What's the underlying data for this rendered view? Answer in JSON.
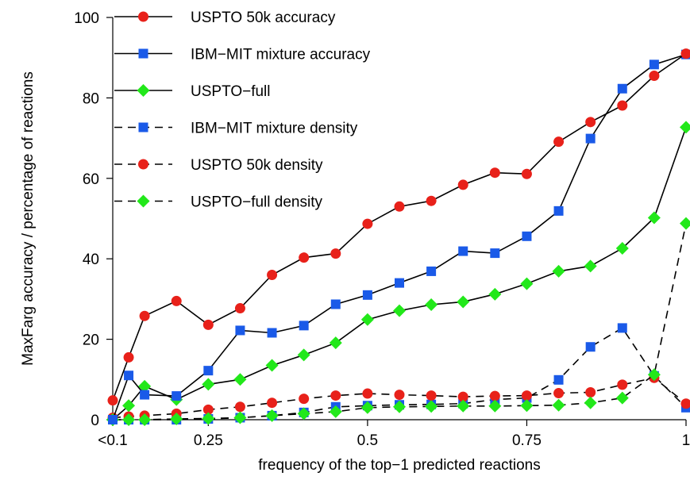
{
  "chart_data": {
    "type": "line",
    "xlabel": "frequency of the top−1 predicted reactions",
    "ylabel": "MaxFarg accuracy / percentage of reactions",
    "xlim": [
      0.1,
      1.0
    ],
    "ylim": [
      0,
      100
    ],
    "x_ticks": [
      {
        "value": 0.1,
        "label": "<0.1"
      },
      {
        "value": 0.25,
        "label": "0.25"
      },
      {
        "value": 0.5,
        "label": "0.5"
      },
      {
        "value": 0.75,
        "label": "0.75"
      },
      {
        "value": 1.0,
        "label": "1"
      }
    ],
    "y_ticks": [
      {
        "value": 0,
        "label": "0"
      },
      {
        "value": 20,
        "label": "20"
      },
      {
        "value": 40,
        "label": "40"
      },
      {
        "value": 60,
        "label": "60"
      },
      {
        "value": 80,
        "label": "80"
      },
      {
        "value": 100,
        "label": "100"
      }
    ],
    "grid": false,
    "legend_position": "top-left",
    "x": [
      0.1,
      0.125,
      0.15,
      0.175,
      0.2,
      0.225,
      0.25,
      0.275,
      0.3,
      0.325,
      0.35,
      0.375,
      0.4,
      0.425,
      0.45,
      0.475,
      0.5,
      0.525,
      0.55,
      0.575,
      0.6,
      0.625,
      0.65,
      0.675,
      0.7,
      0.725,
      0.75,
      0.775,
      0.8,
      0.825,
      0.85,
      0.875,
      0.9,
      0.925,
      0.95,
      0.975,
      1.0
    ],
    "series": [
      {
        "name": " USPTO 50k accuracy",
        "style": "solid",
        "marker": "circle",
        "color": "#e8211a",
        "x": [
          0.1,
          0.125,
          0.15,
          0.2,
          0.25,
          0.3,
          0.35,
          0.4,
          0.45,
          0.5,
          0.55,
          0.6,
          0.65,
          0.7,
          0.75,
          0.8,
          0.85,
          0.9,
          0.95,
          1.0
        ],
        "values": [
          4.8,
          15.5,
          25.8,
          29.5,
          23.6,
          27.7,
          36.0,
          40.3,
          41.3,
          48.7,
          53.0,
          54.4,
          58.4,
          61.4,
          61.1,
          69.1,
          74.0,
          78.1,
          85.5,
          91.0
        ]
      },
      {
        "name": "IBM−MIT mixture accuracy",
        "style": "solid",
        "marker": "square",
        "color": "#1a5ae8",
        "x": [
          0.1,
          0.125,
          0.15,
          0.2,
          0.25,
          0.3,
          0.35,
          0.4,
          0.45,
          0.5,
          0.55,
          0.6,
          0.65,
          0.7,
          0.75,
          0.8,
          0.85,
          0.9,
          0.95,
          1.0
        ],
        "values": [
          0.0,
          11.0,
          6.2,
          5.9,
          12.2,
          22.2,
          21.6,
          23.4,
          28.7,
          31.0,
          34.0,
          36.9,
          41.9,
          41.4,
          45.6,
          51.9,
          69.9,
          82.3,
          88.3,
          90.8
        ]
      },
      {
        "name": "USPTO−full",
        "style": "solid",
        "marker": "diamond",
        "color": "#22e81a",
        "x": [
          0.1,
          0.125,
          0.15,
          0.2,
          0.25,
          0.3,
          0.35,
          0.4,
          0.45,
          0.5,
          0.55,
          0.6,
          0.65,
          0.7,
          0.75,
          0.8,
          0.85,
          0.9,
          0.95,
          1.0
        ],
        "values": [
          0.0,
          3.5,
          8.3,
          5.0,
          8.8,
          10.0,
          13.5,
          16.1,
          19.1,
          24.9,
          27.1,
          28.6,
          29.3,
          31.2,
          33.8,
          36.9,
          38.2,
          42.6,
          50.2,
          72.7
        ]
      },
      {
        "name": "IBM−MIT mixture density",
        "style": "dashed",
        "marker": "square",
        "color": "#1a5ae8",
        "x": [
          0.1,
          0.125,
          0.15,
          0.2,
          0.25,
          0.3,
          0.35,
          0.4,
          0.45,
          0.5,
          0.55,
          0.6,
          0.65,
          0.7,
          0.75,
          0.8,
          0.85,
          0.9,
          0.95,
          1.0
        ],
        "values": [
          0.0,
          0.0,
          0.0,
          0.0,
          0.2,
          0.5,
          1.0,
          1.8,
          3.2,
          3.5,
          3.7,
          3.8,
          4.0,
          5.0,
          5.4,
          9.9,
          18.1,
          22.8,
          10.9,
          3.0
        ]
      },
      {
        "name": " USPTO 50k density",
        "style": "dashed",
        "marker": "circle",
        "color": "#e8211a",
        "x": [
          0.1,
          0.125,
          0.15,
          0.2,
          0.25,
          0.3,
          0.35,
          0.4,
          0.45,
          0.5,
          0.55,
          0.6,
          0.65,
          0.7,
          0.75,
          0.8,
          0.85,
          0.9,
          0.95,
          1.0
        ],
        "values": [
          0.5,
          0.8,
          1.0,
          1.5,
          2.5,
          3.2,
          4.2,
          5.2,
          6.0,
          6.5,
          6.2,
          6.0,
          5.7,
          5.9,
          6.0,
          6.6,
          6.8,
          8.7,
          10.4,
          4.0
        ]
      },
      {
        "name": "USPTO−full density",
        "style": "dashed",
        "marker": "diamond",
        "color": "#22e81a",
        "x": [
          0.1,
          0.125,
          0.15,
          0.2,
          0.25,
          0.3,
          0.35,
          0.4,
          0.45,
          0.5,
          0.55,
          0.6,
          0.65,
          0.7,
          0.75,
          0.8,
          0.85,
          0.9,
          0.95,
          1.0
        ],
        "values": [
          0.0,
          0.0,
          0.0,
          0.2,
          0.3,
          0.5,
          1.0,
          1.5,
          2.0,
          3.0,
          3.2,
          3.3,
          3.4,
          3.4,
          3.5,
          3.6,
          4.2,
          5.4,
          11.2,
          48.8
        ]
      }
    ]
  }
}
